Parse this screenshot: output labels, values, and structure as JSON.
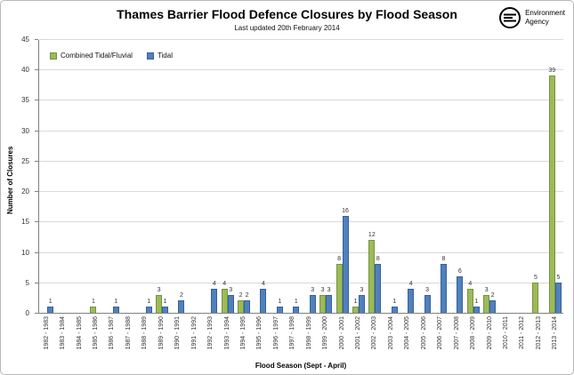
{
  "header": {
    "title": "Thames Barrier Flood Defence Closures by Flood Season",
    "subtitle": "Last updated 20th February 2014"
  },
  "logo": {
    "line1": "Environment",
    "line2": "Agency"
  },
  "chart_data": {
    "type": "bar",
    "title": "Thames Barrier Flood Defence Closures by Flood Season",
    "subtitle": "Last updated 20th February 2014",
    "xlabel": "Flood Season (Sept - April)",
    "ylabel": "Number of Closures",
    "ylim": [
      0,
      45
    ],
    "yticks": [
      0,
      5,
      10,
      15,
      20,
      25,
      30,
      35,
      40,
      45
    ],
    "grid": true,
    "legend_position": "top-left",
    "categories": [
      "1982 - 1983",
      "1983 - 1984",
      "1984 - 1985",
      "1985 - 1986",
      "1986 - 1987",
      "1987 - 1988",
      "1988 - 1989",
      "1989 - 1990",
      "1990 - 1991",
      "1991 - 1992",
      "1992 - 1993",
      "1993 - 1994",
      "1994 - 1995",
      "1995 - 1996",
      "1996 - 1997",
      "1997 - 1998",
      "1998 - 1999",
      "1999 - 2000",
      "2000 - 2001",
      "2001 - 2002",
      "2002 - 2003",
      "2003 - 2004",
      "2004 - 2005",
      "2005 - 2006",
      "2006 - 2007",
      "2007 - 2008",
      "2008 - 2009",
      "2009 - 2010",
      "2010 - 2011",
      "2011 - 2012",
      "2012 - 2013",
      "2013 - 2014"
    ],
    "series": [
      {
        "name": "Combined Tidal/Fluvial",
        "slug": "combined-tidal-fluvial",
        "color": "#9BBB59",
        "border": "#77933C",
        "values": [
          0,
          0,
          0,
          1,
          0,
          0,
          0,
          3,
          0,
          0,
          0,
          4,
          2,
          0,
          0,
          0,
          0,
          3,
          8,
          1,
          12,
          0,
          0,
          0,
          0,
          0,
          4,
          3,
          0,
          0,
          5,
          39
        ]
      },
      {
        "name": "Tidal",
        "slug": "tidal",
        "color": "#4F81BD",
        "border": "#38609A",
        "values": [
          1,
          0,
          0,
          0,
          1,
          0,
          1,
          1,
          2,
          0,
          4,
          3,
          2,
          4,
          1,
          1,
          3,
          3,
          16,
          3,
          8,
          1,
          4,
          3,
          8,
          6,
          1,
          2,
          0,
          0,
          0,
          5
        ]
      }
    ]
  }
}
